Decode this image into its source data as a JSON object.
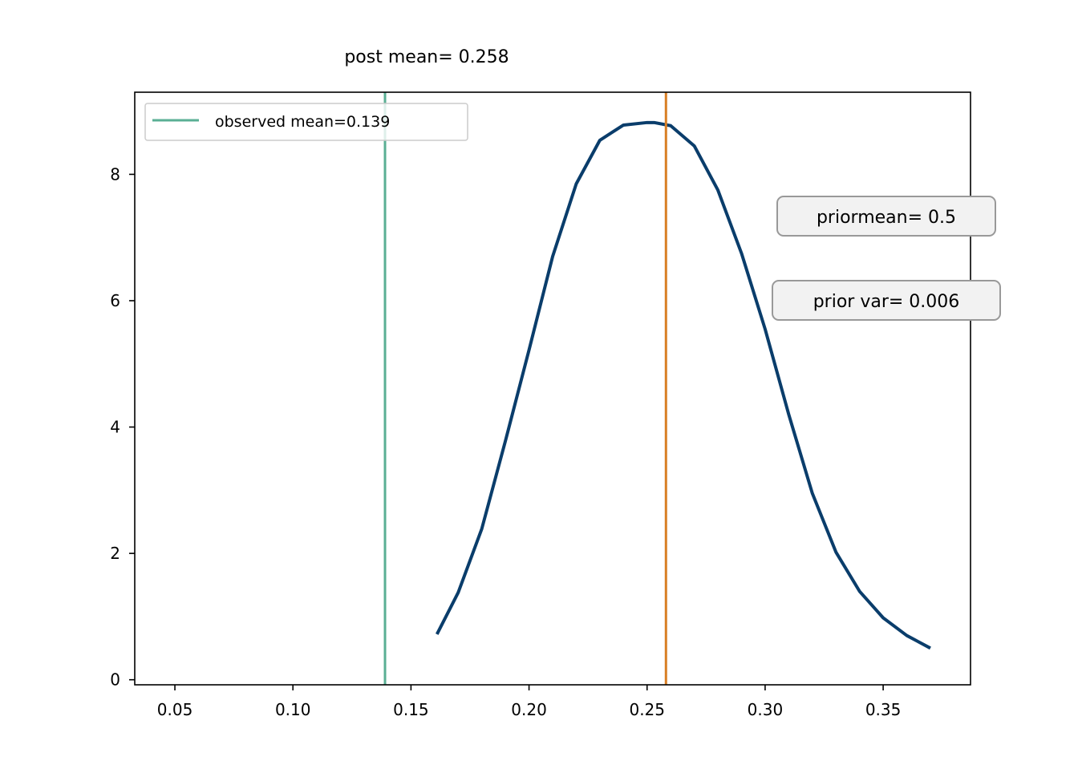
{
  "chart_data": {
    "type": "line",
    "title": "post mean= 0.258",
    "xlabel": "",
    "ylabel": "",
    "xlim": [
      0.033,
      0.387
    ],
    "ylim": [
      -0.08,
      9.3
    ],
    "x_ticks": [
      0.05,
      0.1,
      0.15,
      0.2,
      0.25,
      0.3,
      0.35
    ],
    "x_tick_labels": [
      "0.05",
      "0.10",
      "0.15",
      "0.20",
      "0.25",
      "0.30",
      "0.35"
    ],
    "y_ticks": [
      0,
      2,
      4,
      6,
      8
    ],
    "y_tick_labels": [
      "0",
      "2",
      "4",
      "6",
      "8"
    ],
    "grid": false,
    "legend_position": "top-left",
    "series": [
      {
        "kind": "curve",
        "color": "#0a3d6b",
        "x": [
          0.161,
          0.17,
          0.18,
          0.19,
          0.2,
          0.21,
          0.22,
          0.23,
          0.24,
          0.25,
          0.253,
          0.26,
          0.27,
          0.28,
          0.29,
          0.3,
          0.31,
          0.32,
          0.33,
          0.34,
          0.35,
          0.36,
          0.37
        ],
        "y": [
          0.72,
          1.38,
          2.39,
          3.78,
          5.22,
          6.7,
          7.85,
          8.54,
          8.78,
          8.82,
          8.82,
          8.77,
          8.45,
          7.75,
          6.75,
          5.55,
          4.2,
          2.95,
          2.02,
          1.4,
          0.98,
          0.7,
          0.5
        ]
      },
      {
        "kind": "vline",
        "name": "observed mean=0.139",
        "x": 0.139,
        "color": "#5aaf94"
      },
      {
        "kind": "vline",
        "x": 0.258,
        "color": "#d97f25"
      }
    ],
    "annotations": [
      {
        "text": "priormean= 0.5"
      },
      {
        "text": "prior var= 0.006"
      }
    ]
  }
}
